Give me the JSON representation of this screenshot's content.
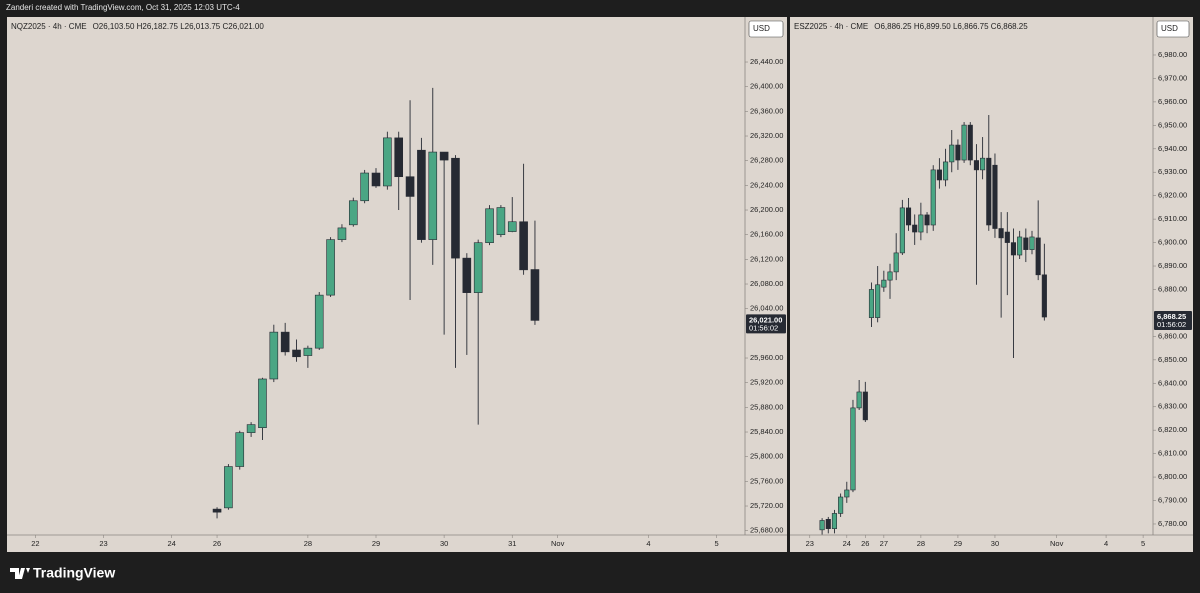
{
  "header": "Zanderi created with TradingView.com, Oct 31, 2025 12:03 UTC-4",
  "footer": "TradingView",
  "chart_data": [
    {
      "type": "candlestick",
      "symbol": "NQZ2025 · 4h · CME",
      "ohlc": "O26,103.50 H26,182.75 L26,013.75 C26,021.00",
      "currency": "USD",
      "up_color": "#4aa684",
      "down_color": "#262a33",
      "grid": false,
      "x": [
        0,
        1,
        2,
        3,
        4,
        5,
        6,
        7,
        8,
        9,
        10,
        11,
        12,
        13,
        14,
        15,
        16,
        17,
        18,
        19,
        20,
        21,
        22,
        23,
        24,
        25,
        26,
        27,
        28
      ],
      "open": [
        25715,
        25717,
        25784,
        25839,
        25847,
        25926,
        26002,
        25973,
        25964,
        25976,
        26062,
        26152,
        26176,
        26215,
        26260,
        26239,
        26317,
        26254,
        26297,
        26152,
        26294,
        26284,
        26122,
        26066,
        26147,
        26160,
        26165,
        26181,
        26103.5
      ],
      "high": [
        25718,
        25788,
        25842,
        25856,
        25928,
        26014,
        26017,
        25990,
        25980,
        26067,
        26156,
        26177,
        26220,
        26265,
        26268,
        26327,
        26327,
        26378,
        26317,
        26398,
        26294,
        26289,
        26130,
        26152,
        26208,
        26208,
        26221,
        26275,
        26182.75
      ],
      "low": [
        25700,
        25714,
        25779,
        25832,
        25827,
        25921,
        25964,
        25954,
        25944,
        25973,
        26059,
        26148,
        26173,
        26211,
        26236,
        26233,
        26200,
        26054,
        26147,
        26111,
        25998,
        25944,
        25965,
        25852,
        26143,
        26156,
        26164,
        26095,
        26013.75
      ],
      "close": [
        25710,
        25784,
        25839,
        25852,
        25926,
        26002,
        25970,
        25962,
        25976,
        26062,
        26152,
        26171,
        26215,
        26260,
        26239,
        26317,
        26254,
        26222,
        26152,
        26294,
        26281,
        26122,
        26066,
        26147,
        26202,
        26204,
        26181,
        26103,
        26021
      ],
      "xlim": [
        -18.5,
        46.5
      ],
      "xticks": [
        {
          "value": -16,
          "label": "22"
        },
        {
          "value": -10,
          "label": "23"
        },
        {
          "value": -4,
          "label": "24"
        },
        {
          "value": 0,
          "label": "26"
        },
        {
          "value": 8,
          "label": "28"
        },
        {
          "value": 14,
          "label": "29"
        },
        {
          "value": 20,
          "label": "30"
        },
        {
          "value": 26,
          "label": "31"
        },
        {
          "value": 30,
          "label": "Nov"
        },
        {
          "value": 38,
          "label": "4"
        },
        {
          "value": 44,
          "label": "5"
        }
      ],
      "ylim": [
        25673,
        26513
      ],
      "yticks": [
        {
          "value": 25680,
          "label": "25,680.00"
        },
        {
          "value": 25720,
          "label": "25,720.00"
        },
        {
          "value": 25760,
          "label": "25,760.00"
        },
        {
          "value": 25800,
          "label": "25,800.00"
        },
        {
          "value": 25840,
          "label": "25,840.00"
        },
        {
          "value": 25880,
          "label": "25,880.00"
        },
        {
          "value": 25920,
          "label": "25,920.00"
        },
        {
          "value": 25960,
          "label": "25,960.00"
        },
        {
          "value": 26040,
          "label": "26,040.00"
        },
        {
          "value": 26080,
          "label": "26,080.00"
        },
        {
          "value": 26120,
          "label": "26,120.00"
        },
        {
          "value": 26160,
          "label": "26,160.00"
        },
        {
          "value": 26200,
          "label": "26,200.00"
        },
        {
          "value": 26240,
          "label": "26,240.00"
        },
        {
          "value": 26280,
          "label": "26,280.00"
        },
        {
          "value": 26320,
          "label": "26,320.00"
        },
        {
          "value": 26360,
          "label": "26,360.00"
        },
        {
          "value": 26400,
          "label": "26,400.00"
        },
        {
          "value": 26440,
          "label": "26,440.00"
        }
      ],
      "last_price": {
        "value": 26021,
        "label": "26,021.00"
      },
      "countdown": "01:56:02"
    },
    {
      "type": "candlestick",
      "symbol": "ESZ2025 · 4h · CME",
      "ohlc": "O6,886.25 H6,899.50 L6,866.75 C6,868.25",
      "currency": "USD",
      "up_color": "#4aa684",
      "down_color": "#262a33",
      "grid": false,
      "x": [
        0,
        1,
        2,
        3,
        4,
        5,
        6,
        7,
        8,
        9,
        10,
        11,
        12,
        13,
        14,
        15,
        16,
        17,
        18,
        19,
        20,
        21,
        22,
        23,
        24,
        25,
        26,
        27,
        28,
        29,
        30,
        31,
        32,
        33,
        34,
        35,
        36
      ],
      "open": [
        6777.5,
        6782,
        6778,
        6784.5,
        6791.5,
        6794.5,
        6829.5,
        6836.3,
        6868,
        6868,
        6881,
        6884,
        6887.5,
        6895.6,
        6914.8,
        6907.5,
        6904.5,
        6911.8,
        6907.5,
        6931,
        6926.7,
        6934.4,
        6941.6,
        6935.2,
        6950.1,
        6935,
        6931,
        6936,
        6933,
        6906,
        6904.5,
        6900,
        6894.7,
        6902,
        6897,
        6902,
        6886.25
      ],
      "high": [
        6782.5,
        6783,
        6786,
        6793,
        6798,
        6832.9,
        6841.4,
        6840.6,
        6883,
        6890,
        6888,
        6891,
        6904,
        6918.2,
        6919,
        6912,
        6917,
        6913,
        6933,
        6936,
        6940,
        6948,
        6944,
        6951.4,
        6951.4,
        6942,
        6945,
        6954.4,
        6938,
        6913,
        6913,
        6906,
        6905,
        6906,
        6905,
        6918,
        6899.5
      ],
      "low": [
        6775.5,
        6776,
        6776,
        6783,
        6789,
        6793.6,
        6828.6,
        6823.5,
        6864,
        6866,
        6879,
        6876,
        6884,
        6894.7,
        6905,
        6899,
        6901,
        6904,
        6905,
        6923,
        6924,
        6930,
        6931,
        6934,
        6933,
        6882,
        6927,
        6905,
        6902,
        6868,
        6877.6,
        6850.8,
        6893,
        6891.7,
        6895,
        6884,
        6866.75
      ],
      "close": [
        6781.5,
        6778,
        6784.5,
        6791.5,
        6794.5,
        6829.5,
        6836.3,
        6824.4,
        6880,
        6882,
        6884,
        6887.5,
        6895.6,
        6914.8,
        6907.5,
        6904.5,
        6911.8,
        6907.5,
        6931,
        6926.7,
        6934.4,
        6941.6,
        6935.2,
        6950.1,
        6935.2,
        6931,
        6936,
        6907.5,
        6906,
        6902,
        6900,
        6894.7,
        6902.4,
        6897,
        6902.4,
        6886.25,
        6868.25
      ],
      "xlim": [
        -5.2,
        53.6
      ],
      "xticks": [
        {
          "value": -2,
          "label": "23"
        },
        {
          "value": 4,
          "label": "24"
        },
        {
          "value": 7,
          "label": "26"
        },
        {
          "value": 10,
          "label": "27"
        },
        {
          "value": 16,
          "label": "28"
        },
        {
          "value": 22,
          "label": "29"
        },
        {
          "value": 28,
          "label": "30"
        },
        {
          "value": 38,
          "label": "Nov"
        },
        {
          "value": 46,
          "label": "4"
        },
        {
          "value": 52,
          "label": "5"
        }
      ],
      "ylim": [
        6775.3,
        6996.2
      ],
      "yticks": [
        {
          "value": 6780,
          "label": "6,780.00"
        },
        {
          "value": 6790,
          "label": "6,790.00"
        },
        {
          "value": 6800,
          "label": "6,800.00"
        },
        {
          "value": 6810,
          "label": "6,810.00"
        },
        {
          "value": 6820,
          "label": "6,820.00"
        },
        {
          "value": 6830,
          "label": "6,830.00"
        },
        {
          "value": 6840,
          "label": "6,840.00"
        },
        {
          "value": 6850,
          "label": "6,850.00"
        },
        {
          "value": 6860,
          "label": "6,860.00"
        },
        {
          "value": 6880,
          "label": "6,880.00"
        },
        {
          "value": 6890,
          "label": "6,890.00"
        },
        {
          "value": 6900,
          "label": "6,900.00"
        },
        {
          "value": 6910,
          "label": "6,910.00"
        },
        {
          "value": 6920,
          "label": "6,920.00"
        },
        {
          "value": 6930,
          "label": "6,930.00"
        },
        {
          "value": 6940,
          "label": "6,940.00"
        },
        {
          "value": 6950,
          "label": "6,950.00"
        },
        {
          "value": 6960,
          "label": "6,960.00"
        },
        {
          "value": 6970,
          "label": "6,970.00"
        },
        {
          "value": 6980,
          "label": "6,980.00"
        }
      ],
      "last_price": {
        "value": 6868.25,
        "label": "6,868.25"
      },
      "countdown": "01:56:02"
    }
  ]
}
